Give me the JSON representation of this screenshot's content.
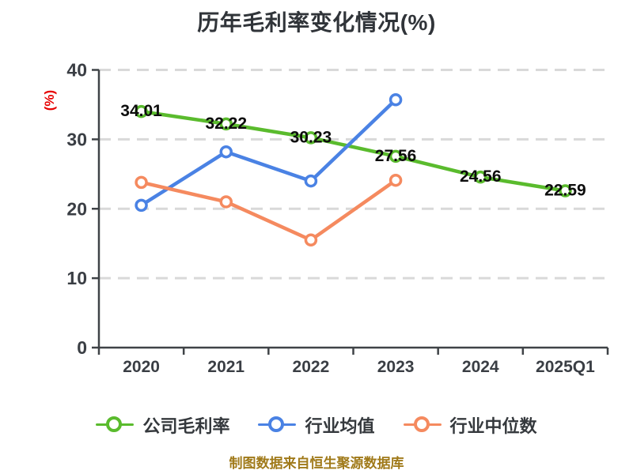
{
  "page": {
    "caption": "制图数据来自恒生聚源数据库"
  },
  "chart_data": {
    "type": "line",
    "title": "历年毛利率变化情况(%)",
    "ylabel": "(%)",
    "categories": [
      "2020",
      "2021",
      "2022",
      "2023",
      "2024",
      "2025Q1"
    ],
    "series": [
      {
        "name": "公司毛利率",
        "color": "#5abb2d",
        "values": [
          34.01,
          32.22,
          30.23,
          27.56,
          24.56,
          22.59
        ],
        "data_labels": [
          "34.01",
          "32.22",
          "30.23",
          "27.56",
          "24.56",
          "22.59"
        ],
        "show_labels": true
      },
      {
        "name": "行业均值",
        "color": "#4a82e4",
        "values": [
          20.5,
          28.2,
          24.0,
          35.7
        ],
        "show_labels": false
      },
      {
        "name": "行业中位数",
        "color": "#f58a5f",
        "values": [
          23.8,
          21.0,
          15.5,
          24.1
        ],
        "show_labels": false
      }
    ],
    "ylim": [
      0,
      40
    ],
    "yticks": [
      0,
      10,
      20,
      30,
      40
    ],
    "grid": "horizontal-dashed",
    "legend_position": "bottom",
    "styles": {
      "grid_color": "#d9d9d9",
      "axis_color": "#3f4347",
      "tick_label_color": "#3a3e44",
      "data_label_color": "#0d0d0d",
      "title_color": "#303439",
      "ylabel_color": "#e60000",
      "caption_color": "#a07a1a",
      "marker_fill": "#ffffff"
    }
  }
}
